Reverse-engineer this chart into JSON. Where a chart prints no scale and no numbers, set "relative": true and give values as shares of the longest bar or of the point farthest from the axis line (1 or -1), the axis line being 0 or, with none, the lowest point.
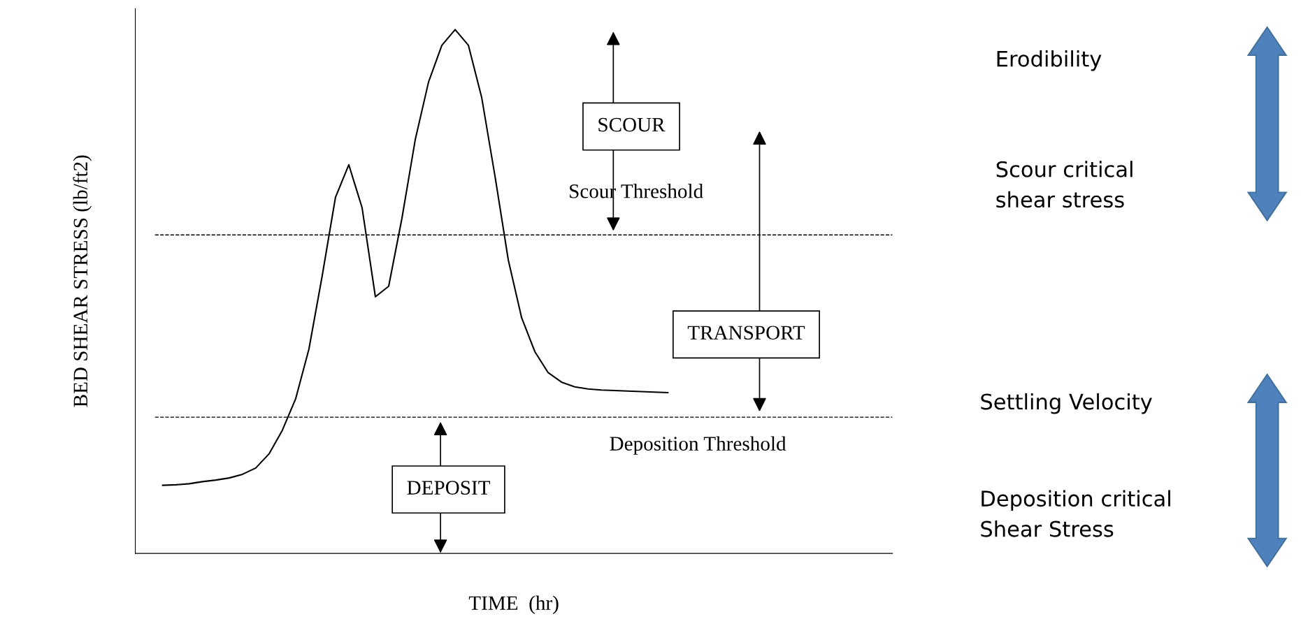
{
  "chart_data": {
    "type": "line",
    "relative": true,
    "xlabel": "TIME  (hr)",
    "ylabel": "BED SHEAR STRESS (lb/ft2)",
    "categories": [
      null,
      null,
      null,
      null,
      null,
      null,
      null,
      null,
      null,
      null,
      null,
      null,
      null,
      null,
      null,
      null,
      null,
      null,
      null,
      null,
      null,
      null,
      null,
      null,
      null,
      null,
      null,
      null,
      null,
      null,
      null,
      null,
      null,
      null,
      null,
      null,
      null,
      null,
      null
    ],
    "series": [
      {
        "color": "#000000",
        "values": [
          0.13,
          0.131,
          0.133,
          0.137,
          0.14,
          0.144,
          0.151,
          0.163,
          0.19,
          0.235,
          0.295,
          0.39,
          0.53,
          0.68,
          0.742,
          0.66,
          0.49,
          0.51,
          0.64,
          0.79,
          0.9,
          0.97,
          1.0,
          0.97,
          0.87,
          0.72,
          0.56,
          0.45,
          0.385,
          0.345,
          0.327,
          0.318,
          0.314,
          0.312,
          0.311,
          0.31,
          0.309,
          0.308,
          0.307
        ]
      }
    ],
    "ref_lines": [
      {
        "axis": "y",
        "value": 0.608,
        "label": "Scour Threshold",
        "color": "#000000",
        "line_style": "dashed"
      },
      {
        "axis": "y",
        "value": 0.26,
        "label": "Deposition Threshold",
        "color": "#000000",
        "line_style": "dashed"
      }
    ],
    "annotations": [
      "SCOUR",
      "TRANSPORT",
      "DEPOSIT",
      "Erodibility",
      "Scour critical\nshear stress",
      "Settling Velocity",
      "Deposition critical\nShear Stress"
    ],
    "grid": false,
    "legend": false,
    "marker": "none",
    "line_style": "solid"
  }
}
